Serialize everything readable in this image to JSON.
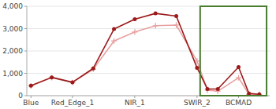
{
  "chart_data": {
    "type": "line",
    "x": [
      0,
      1,
      2,
      3,
      4,
      5,
      6,
      7,
      8,
      8.5,
      9,
      10,
      10.5,
      11
    ],
    "series": [
      {
        "color": "#e8a0a0",
        "marker": "plus",
        "values": [
          440,
          810,
          590,
          1180,
          2450,
          2850,
          3130,
          3160,
          1550,
          250,
          200,
          800,
          60,
          50
        ]
      },
      {
        "color": "#9b1b1b",
        "marker": "circle",
        "values": [
          450,
          820,
          600,
          1220,
          2980,
          3420,
          3680,
          3560,
          1250,
          300,
          300,
          1280,
          100,
          60
        ]
      }
    ],
    "xlim": [
      -0.2,
      11.5
    ],
    "xticks": [
      {
        "value": 0,
        "label": "Blue"
      },
      {
        "value": 2,
        "label": "Red_Edge_1"
      },
      {
        "value": 5,
        "label": "NIR_1"
      },
      {
        "value": 8,
        "label": "SWIR_2"
      },
      {
        "value": 10,
        "label": "BCMAD"
      }
    ],
    "ylim": [
      0,
      4000
    ],
    "yticks": [
      0,
      {
        "value": 1000,
        "label": "1,000"
      },
      {
        "value": 2000,
        "label": "2,000"
      },
      {
        "value": 3000,
        "label": "3,000"
      },
      {
        "value": 4000,
        "label": "4,000"
      }
    ],
    "grid": true,
    "highlight": {
      "x": 8.15,
      "width": 3.2,
      "color": "#4a7c2f"
    }
  }
}
